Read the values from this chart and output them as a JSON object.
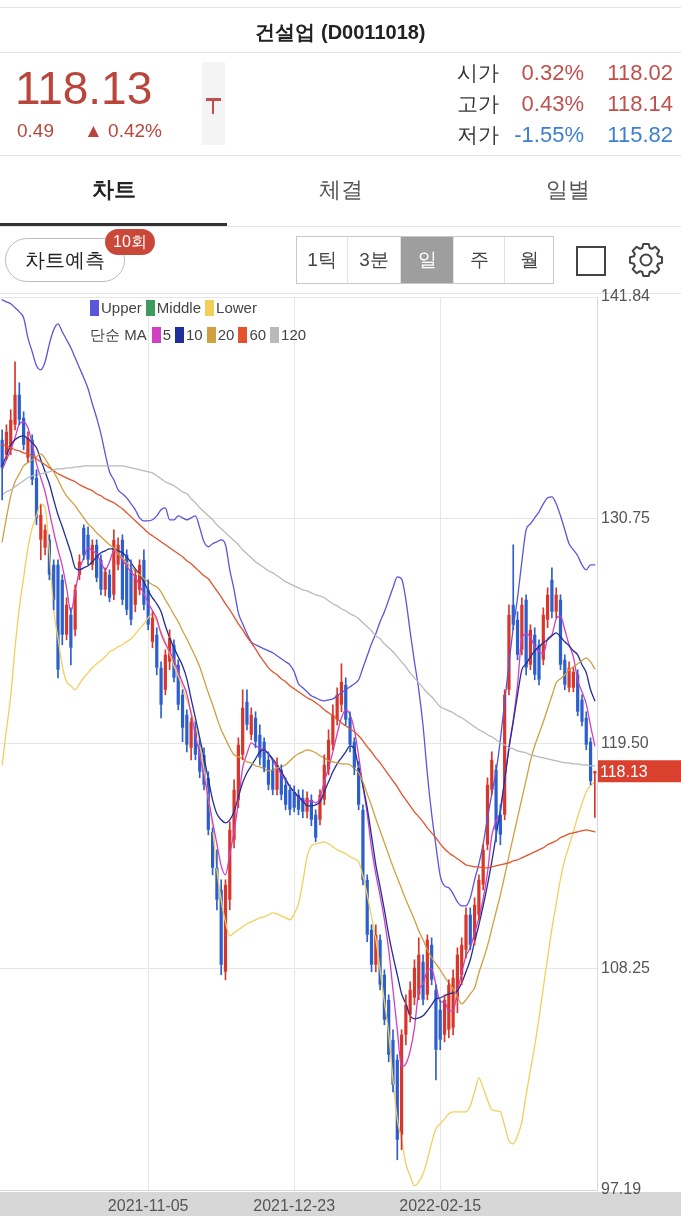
{
  "chart_data": {
    "type": "candlestick",
    "title": "건설업 (D0011018)",
    "legend_title": "단순 MA",
    "legend": "top left",
    "grid": true,
    "categories": [
      null,
      null,
      null,
      null,
      null,
      null,
      null,
      null,
      null,
      null,
      null,
      null,
      null,
      null,
      null,
      null,
      null,
      null,
      null,
      null,
      null,
      null,
      null,
      null,
      null,
      null,
      null,
      null,
      null,
      null,
      null,
      null,
      null,
      null,
      "2021-11-05",
      null,
      null,
      null,
      null,
      null,
      null,
      null,
      null,
      null,
      null,
      null,
      null,
      null,
      null,
      null,
      null,
      null,
      null,
      null,
      null,
      null,
      null,
      null,
      null,
      null,
      null,
      null,
      null,
      null,
      null,
      null,
      null,
      null,
      "2021-12-23",
      null,
      null,
      null,
      null,
      null,
      null,
      null,
      null,
      null,
      null,
      null,
      null,
      null,
      null,
      null,
      null,
      null,
      null,
      null,
      null,
      null,
      null,
      null,
      null,
      null,
      null,
      null,
      null,
      null,
      null,
      null,
      null,
      null,
      "2022-02-15",
      null,
      null,
      null,
      null,
      null,
      null,
      null,
      null,
      null,
      null,
      null,
      null,
      null,
      null,
      null,
      null,
      null,
      null,
      null,
      null,
      null,
      null,
      null,
      null,
      null,
      null,
      null,
      null,
      null,
      null,
      null,
      null,
      null,
      null,
      null,
      null
    ],
    "ylim": [
      97.19,
      141.84
    ],
    "yticks": [
      97.19,
      108.25,
      {
        "value": 119.5,
        "label": "119.50"
      },
      130.75,
      141.84
    ],
    "ohlc": [
      [
        134.7,
        135.2,
        131.7,
        133.3
      ],
      [
        133.95,
        135.45,
        133.7,
        135.1
      ],
      [
        134.2,
        136.2,
        133.95,
        135.7
      ],
      [
        135.45,
        138.6,
        135.2,
        136.95
      ],
      [
        136.95,
        137.55,
        135.45,
        135.7
      ],
      [
        135.8,
        136.1,
        134.2,
        134.45
      ],
      [
        133.8,
        135.1,
        133.6,
        134.8
      ],
      [
        134.7,
        134.95,
        132.45,
        132.7
      ],
      [
        132.8,
        133.2,
        130.45,
        130.8
      ],
      [
        129.7,
        131.45,
        128.7,
        130.95
      ],
      [
        129.3,
        130.45,
        128.95,
        130.2
      ],
      [
        129.7,
        129.95,
        127.7,
        127.95
      ],
      [
        128.45,
        128.7,
        126.2,
        126.7
      ],
      [
        128.45,
        128.7,
        122.8,
        123.2
      ],
      [
        127.7,
        127.95,
        124.45,
        124.95
      ],
      [
        124.95,
        126.8,
        124.7,
        126.45
      ],
      [
        125.95,
        126.3,
        123.45,
        124.3
      ],
      [
        125.2,
        127.45,
        124.9,
        127.2
      ],
      [
        127.95,
        128.95,
        127.7,
        128.6
      ],
      [
        130.3,
        130.45,
        128.7,
        128.95
      ],
      [
        129.95,
        130.35,
        128.45,
        128.7
      ],
      [
        128.45,
        129.7,
        128.2,
        129.45
      ],
      [
        129.45,
        129.7,
        127.6,
        127.8
      ],
      [
        128.7,
        128.95,
        126.95,
        127.2
      ],
      [
        127.2,
        128.3,
        126.9,
        128.1
      ],
      [
        127.95,
        128.2,
        126.6,
        126.8
      ],
      [
        126.95,
        130.2,
        126.7,
        129.7
      ],
      [
        128.45,
        129.8,
        128.2,
        129.45
      ],
      [
        129.7,
        129.95,
        126.45,
        126.7
      ],
      [
        128.95,
        129.2,
        125.95,
        126.2
      ],
      [
        128.2,
        128.7,
        125.45,
        125.7
      ],
      [
        126.45,
        128.2,
        126.1,
        127.95
      ],
      [
        127.2,
        128.7,
        126.95,
        128.45
      ],
      [
        128.7,
        129.2,
        126.2,
        126.45
      ],
      [
        127.2,
        127.7,
        125.2,
        125.45
      ],
      [
        124.6,
        126.1,
        124.3,
        125.8
      ],
      [
        124.95,
        125.3,
        122.95,
        123.3
      ],
      [
        123.3,
        123.6,
        120.8,
        121.45
      ],
      [
        122.2,
        124.2,
        121.95,
        123.95
      ],
      [
        123.6,
        125.2,
        123.2,
        124.8
      ],
      [
        124.45,
        124.7,
        122.6,
        122.8
      ],
      [
        123.45,
        123.7,
        121.2,
        121.45
      ],
      [
        121.95,
        122.2,
        119.6,
        120.3
      ],
      [
        120.95,
        121.2,
        119.1,
        119.45
      ],
      [
        119.3,
        120.8,
        118.7,
        120.6
      ],
      [
        120.3,
        120.6,
        118.7,
        118.95
      ],
      [
        119.45,
        119.7,
        117.8,
        118.1
      ],
      [
        118.95,
        119.3,
        117.2,
        117.45
      ],
      [
        117.8,
        118.1,
        114.95,
        115.2
      ],
      [
        115.1,
        115.3,
        112.95,
        113.3
      ],
      [
        113.3,
        114.2,
        111.2,
        111.7
      ],
      [
        112.2,
        112.7,
        107.95,
        108.45
      ],
      [
        108.1,
        112.7,
        107.7,
        112.45
      ],
      [
        111.7,
        115.6,
        111.2,
        115.2
      ],
      [
        114.7,
        117.7,
        114.3,
        117.2
      ],
      [
        116.7,
        119.8,
        116.3,
        119.45
      ],
      [
        118.95,
        122.2,
        118.7,
        121.3
      ],
      [
        121.6,
        122.2,
        120.2,
        120.45
      ],
      [
        119.95,
        121.3,
        119.7,
        120.95
      ],
      [
        120.8,
        121.1,
        119.3,
        119.6
      ],
      [
        119.95,
        120.45,
        118.45,
        118.8
      ],
      [
        119.6,
        119.8,
        118.1,
        118.3
      ],
      [
        118.7,
        119.1,
        117.2,
        117.45
      ],
      [
        118.2,
        118.7,
        116.95,
        117.2
      ],
      [
        117.2,
        118.8,
        116.95,
        118.45
      ],
      [
        118.2,
        118.45,
        116.7,
        116.95
      ],
      [
        117.45,
        117.8,
        116.2,
        116.45
      ],
      [
        117.2,
        117.45,
        115.95,
        116.2
      ],
      [
        117.1,
        117.4,
        116.1,
        116.3
      ],
      [
        116.95,
        117.2,
        115.95,
        116.2
      ],
      [
        116.8,
        117.2,
        115.8,
        116.1
      ],
      [
        116.1,
        117.1,
        115.8,
        116.8
      ],
      [
        116.7,
        116.95,
        115.4,
        115.7
      ],
      [
        115.95,
        116.2,
        114.6,
        114.8
      ],
      [
        115.7,
        117.2,
        115.45,
        116.95
      ],
      [
        116.7,
        118.95,
        116.45,
        118.45
      ],
      [
        118.2,
        120.2,
        117.95,
        119.7
      ],
      [
        119.45,
        121.45,
        119.2,
        120.95
      ],
      [
        120.7,
        122.3,
        120.45,
        121.95
      ],
      [
        121.45,
        123.5,
        121.1,
        122.6
      ],
      [
        122.45,
        122.8,
        120.45,
        120.7
      ],
      [
        120.8,
        121.1,
        119.1,
        119.45
      ],
      [
        119.6,
        119.8,
        117.95,
        118.3
      ],
      [
        118.3,
        118.6,
        116.2,
        116.45
      ],
      [
        116.2,
        116.45,
        112.45,
        112.7
      ],
      [
        112.7,
        112.95,
        109.6,
        109.95
      ],
      [
        110.2,
        110.45,
        108.1,
        108.45
      ],
      [
        108.45,
        110.45,
        108.1,
        109.95
      ],
      [
        109.7,
        109.95,
        107.2,
        107.45
      ],
      [
        107.95,
        108.2,
        105.45,
        105.7
      ],
      [
        106.7,
        106.95,
        103.6,
        103.95
      ],
      [
        104.7,
        105.2,
        102.1,
        102.45
      ],
      [
        103.7,
        103.95,
        98.7,
        99.7
      ],
      [
        99.95,
        105.2,
        99.2,
        104.95
      ],
      [
        104.95,
        106.95,
        104.45,
        106.45
      ],
      [
        105.95,
        107.6,
        105.6,
        107.2
      ],
      [
        106.8,
        108.7,
        106.45,
        108.3
      ],
      [
        106.95,
        109.8,
        106.7,
        108.95
      ],
      [
        108.6,
        108.95,
        106.45,
        106.7
      ],
      [
        106.95,
        109.95,
        106.7,
        109.7
      ],
      [
        109.45,
        109.8,
        107.45,
        107.7
      ],
      [
        107.2,
        107.45,
        102.7,
        104.2
      ],
      [
        106.2,
        106.7,
        104.2,
        104.7
      ],
      [
        104.95,
        106.95,
        104.6,
        106.7
      ],
      [
        105.2,
        107.7,
        104.8,
        107.45
      ],
      [
        105.3,
        108.2,
        104.95,
        107.8
      ],
      [
        106.7,
        109.3,
        106.05,
        108.95
      ],
      [
        107.95,
        109.8,
        107.45,
        109.45
      ],
      [
        109.2,
        111.3,
        108.8,
        110.95
      ],
      [
        110.95,
        111.3,
        109.2,
        109.45
      ],
      [
        109.7,
        111.8,
        109.45,
        111.45
      ],
      [
        110.95,
        112.95,
        110.7,
        112.7
      ],
      [
        112.45,
        114.45,
        112.2,
        114.2
      ],
      [
        114.45,
        117.8,
        114.2,
        117.45
      ],
      [
        117.2,
        119.1,
        116.95,
        118.7
      ],
      [
        118.2,
        118.45,
        114.6,
        115.2
      ],
      [
        115.95,
        116.45,
        114.45,
        114.95
      ],
      [
        115.95,
        122.2,
        115.7,
        121.95
      ],
      [
        122.2,
        126.45,
        121.95,
        125.95
      ],
      [
        126.45,
        129.45,
        125.2,
        125.45
      ],
      [
        125.7,
        126.1,
        123.7,
        123.95
      ],
      [
        124.2,
        126.8,
        123.95,
        126.45
      ],
      [
        126.7,
        126.95,
        122.95,
        123.3
      ],
      [
        123.45,
        125.45,
        123.2,
        125.2
      ],
      [
        124.95,
        125.3,
        122.7,
        122.95
      ],
      [
        124.45,
        124.7,
        122.45,
        122.7
      ],
      [
        123.7,
        126.3,
        123.45,
        125.95
      ],
      [
        125.7,
        127.3,
        125.3,
        126.95
      ],
      [
        127.7,
        128.3,
        125.8,
        126.1
      ],
      [
        126.1,
        127.3,
        125.8,
        126.95
      ],
      [
        126.7,
        126.95,
        123.2,
        123.45
      ],
      [
        123.7,
        123.95,
        122.2,
        122.45
      ],
      [
        122.3,
        123.6,
        122.1,
        123.3
      ],
      [
        122.3,
        123.3,
        122.1,
        123.1
      ],
      [
        122.95,
        123.2,
        120.9,
        121.1
      ],
      [
        121.7,
        121.95,
        120.4,
        120.6
      ],
      [
        120.8,
        121.1,
        119.2,
        119.45
      ],
      [
        119.6,
        119.8,
        117.45,
        117.64
      ],
      [
        118.02,
        118.14,
        115.82,
        118.13
      ]
    ],
    "colors": [
      "#2c5fce",
      "#d8362b",
      "#d8362b",
      "#d8362b",
      "#2c5fce",
      "#2c5fce",
      "#d8362b",
      "#2c5fce",
      "#2c5fce",
      "#d8362b",
      "#d8362b",
      "#2c5fce",
      "#2c5fce",
      "#2c5fce",
      "#2c5fce",
      "#d8362b",
      "#2c5fce",
      "#d8362b",
      "#d8362b",
      "#2c5fce",
      "#2c5fce",
      "#d8362b",
      "#2c5fce",
      "#2c5fce",
      "#d8362b",
      "#2c5fce",
      "#d8362b",
      "#d8362b",
      "#2c5fce",
      "#2c5fce",
      "#2c5fce",
      "#d8362b",
      "#d8362b",
      "#2c5fce",
      "#2c5fce",
      "#d8362b",
      "#2c5fce",
      "#2c5fce",
      "#d8362b",
      "#d8362b",
      "#2c5fce",
      "#2c5fce",
      "#2c5fce",
      "#2c5fce",
      "#d8362b",
      "#2c5fce",
      "#2c5fce",
      "#2c5fce",
      "#2c5fce",
      "#2c5fce",
      "#2c5fce",
      "#2c5fce",
      "#d8362b",
      "#d8362b",
      "#d8362b",
      "#d8362b",
      "#d8362b",
      "#2c5fce",
      "#d8362b",
      "#2c5fce",
      "#2c5fce",
      "#2c5fce",
      "#2c5fce",
      "#2c5fce",
      "#d8362b",
      "#2c5fce",
      "#2c5fce",
      "#2c5fce",
      "#2c5fce",
      "#2c5fce",
      "#2c5fce",
      "#d8362b",
      "#2c5fce",
      "#2c5fce",
      "#d8362b",
      "#d8362b",
      "#d8362b",
      "#d8362b",
      "#d8362b",
      "#d8362b",
      "#2c5fce",
      "#2c5fce",
      "#2c5fce",
      "#2c5fce",
      "#2c5fce",
      "#2c5fce",
      "#2c5fce",
      "#d8362b",
      "#2c5fce",
      "#2c5fce",
      "#2c5fce",
      "#2c5fce",
      "#2c5fce",
      "#d8362b",
      "#d8362b",
      "#d8362b",
      "#d8362b",
      "#d8362b",
      "#2c5fce",
      "#d8362b",
      "#2c5fce",
      "#2c5fce",
      "#2c5fce",
      "#d8362b",
      "#d8362b",
      "#d8362b",
      "#d8362b",
      "#d8362b",
      "#d8362b",
      "#2c5fce",
      "#d8362b",
      "#d8362b",
      "#d8362b",
      "#d8362b",
      "#d8362b",
      "#2c5fce",
      "#2c5fce",
      "#d8362b",
      "#d8362b",
      "#2c5fce",
      "#2c5fce",
      "#d8362b",
      "#2c5fce",
      "#d8362b",
      "#2c5fce",
      "#2c5fce",
      "#d8362b",
      "#d8362b",
      "#2c5fce",
      "#d8362b",
      "#2c5fce",
      "#2c5fce",
      "#d8362b",
      "#d8362b",
      "#2c5fce",
      "#2c5fce",
      "#2c5fce",
      "#2c5fce",
      "#d8362b"
    ],
    "series": [
      {
        "name": "Upper",
        "type": "line",
        "color": "#5b55d9",
        "values": [
          141.7,
          141.6,
          141.5,
          141.3,
          141.1,
          140.8,
          139.8,
          139.1,
          138.4,
          138.2,
          138.6,
          139.5,
          140.2,
          140.5,
          140.1,
          139.7,
          139.3,
          138.8,
          138.3,
          137.8,
          137.25,
          136.5,
          135.8,
          135.0,
          134.0,
          133.1,
          132.7,
          132.2,
          132.0,
          131.8,
          131.5,
          131.2,
          130.8,
          130.65,
          130.65,
          130.7,
          130.9,
          131.2,
          131.3,
          130.7,
          130.7,
          130.9,
          130.8,
          130.7,
          130.8,
          130.9,
          130.3,
          129.6,
          129.35,
          129.5,
          129.6,
          129.7,
          129.45,
          128.2,
          127.2,
          126.05,
          125.5,
          125.0,
          124.6,
          124.45,
          124.35,
          124.25,
          124.15,
          124.05,
          123.9,
          123.75,
          123.6,
          123.45,
          123.1,
          122.5,
          122.3,
          122.1,
          121.9,
          121.8,
          121.7,
          121.65,
          121.7,
          121.75,
          121.9,
          122.05,
          122.2,
          122.35,
          122.5,
          122.7,
          123.3,
          123.9,
          124.5,
          125.0,
          125.6,
          126.1,
          126.7,
          127.3,
          127.85,
          127.75,
          126.7,
          125.1,
          123.6,
          122.2,
          120.4,
          118.0,
          116.0,
          114.4,
          112.9,
          112.4,
          112.3,
          112.0,
          111.6,
          111.4,
          111.4,
          111.8,
          112.7,
          113.5,
          114.5,
          115.8,
          117.0,
          118.1,
          119.7,
          121.6,
          123.5,
          125.3,
          126.8,
          128.6,
          130.2,
          130.5,
          130.8,
          131.1,
          131.5,
          131.8,
          131.85,
          131.5,
          130.9,
          130.2,
          129.5,
          129.2,
          128.9,
          128.45,
          128.2,
          128.45,
          128.45
        ]
      },
      {
        "name": "Middle",
        "type": "line",
        "color": "#3f9a60",
        "values": [
          null,
          null,
          null,
          null,
          null,
          null,
          null,
          null,
          null,
          null,
          null,
          null,
          null,
          null,
          null,
          null,
          null,
          null,
          null,
          null,
          null,
          null,
          null,
          null,
          null,
          null,
          null,
          null,
          null,
          null,
          null,
          null,
          null,
          null,
          null,
          null,
          null,
          null,
          null,
          null,
          null,
          null,
          null,
          null,
          null,
          null,
          null,
          null,
          null,
          null,
          null,
          null,
          null,
          null,
          null,
          null,
          null,
          null,
          null,
          null,
          null,
          null,
          null,
          null,
          null,
          null,
          null,
          null,
          null,
          null,
          null,
          null,
          null,
          null,
          null,
          null,
          null,
          null,
          null,
          null,
          null,
          null,
          null,
          null,
          null,
          null,
          null,
          null,
          null,
          null,
          null,
          null,
          null,
          null,
          null,
          null,
          null,
          null,
          null,
          null,
          null,
          null,
          null,
          null,
          null,
          null,
          null,
          null,
          null,
          null,
          null,
          null,
          null,
          null,
          null,
          null,
          null,
          null,
          null,
          null,
          null,
          null,
          null,
          null,
          null,
          null,
          null,
          null,
          null,
          null,
          null,
          null,
          null,
          null,
          null,
          null,
          null,
          null,
          null
        ]
      },
      {
        "name": "Lower",
        "type": "line",
        "color": "#f2cf5b",
        "values": [
          118.45,
          120.2,
          121.9,
          124.3,
          126.3,
          127.8,
          129.3,
          130.3,
          130.9,
          131.5,
          131.3,
          129.1,
          126.2,
          124.8,
          123.4,
          122.6,
          122.4,
          122.2,
          122.5,
          122.8,
          123.05,
          123.3,
          123.5,
          123.65,
          123.85,
          124.1,
          124.2,
          124.35,
          124.45,
          124.6,
          124.75,
          125.0,
          125.25,
          125.5,
          125.8,
          126.0,
          125.6,
          125.1,
          124.6,
          124.0,
          123.4,
          122.9,
          122.3,
          121.7,
          121.1,
          120.45,
          119.45,
          118.2,
          116.8,
          115.3,
          113.2,
          111.7,
          110.6,
          109.9,
          110.05,
          110.2,
          110.35,
          110.5,
          110.6,
          110.7,
          110.8,
          110.85,
          110.95,
          111.05,
          111.0,
          110.9,
          110.8,
          110.7,
          111.0,
          111.5,
          112.6,
          113.85,
          114.4,
          114.5,
          114.55,
          114.6,
          114.5,
          114.35,
          114.2,
          114.1,
          114.0,
          113.85,
          113.75,
          113.6,
          112.9,
          111.95,
          110.85,
          109.75,
          108.2,
          106.6,
          105.0,
          102.7,
          100.75,
          99.7,
          98.5,
          97.9,
          97.4,
          97.6,
          98.0,
          98.7,
          99.55,
          100.25,
          100.5,
          100.75,
          101.0,
          101.1,
          101.1,
          101.1,
          101.1,
          101.4,
          102.1,
          102.8,
          102.3,
          101.7,
          101.2,
          101.15,
          101.1,
          100.4,
          99.65,
          99.5,
          99.9,
          100.6,
          101.95,
          103.2,
          104.4,
          105.8,
          107.3,
          108.8,
          110.25,
          111.5,
          112.75,
          113.7,
          114.4,
          115.1,
          115.85,
          116.5,
          117.1,
          117.4,
          117.6
        ]
      },
      {
        "name": "5",
        "type": "line",
        "color": "#d23fc2",
        "values": [
          133.2,
          133.7,
          134.2,
          134.8,
          135.5,
          135.6,
          135.3,
          134.5,
          133.5,
          132.8,
          132.1,
          131.1,
          130.1,
          129.2,
          128.4,
          127.3,
          126.1,
          127.1,
          128.2,
          128.8,
          129.3,
          129.15,
          129.0,
          128.6,
          128.2,
          128.6,
          129.15,
          129.0,
          128.7,
          128.4,
          128.1,
          127.85,
          127.4,
          127.0,
          126.55,
          126.15,
          125.75,
          125.0,
          124.5,
          124.1,
          123.7,
          123.1,
          122.55,
          122.0,
          121.0,
          119.95,
          118.95,
          117.9,
          116.8,
          115.6,
          114.5,
          113.4,
          112.95,
          114.0,
          115.1,
          116.6,
          118.3,
          119.0,
          119.55,
          119.4,
          119.3,
          119.15,
          119.0,
          118.65,
          118.3,
          118.0,
          117.65,
          117.35,
          117.1,
          116.8,
          116.65,
          116.65,
          116.65,
          116.55,
          116.8,
          117.6,
          118.3,
          119.1,
          120.0,
          120.8,
          121.2,
          120.95,
          120.2,
          118.9,
          117.4,
          116.0,
          114.3,
          113.0,
          111.9,
          110.7,
          109.2,
          107.2,
          105.2,
          103.35,
          103.5,
          104.15,
          105.3,
          107.15,
          107.5,
          108.15,
          108.25,
          107.45,
          106.6,
          106.6,
          106.15,
          106.15,
          107.1,
          108.05,
          108.9,
          109.3,
          110.05,
          110.8,
          111.75,
          113.05,
          114.9,
          115.65,
          116.1,
          117.65,
          119.35,
          120.7,
          122.45,
          124.75,
          125.0,
          124.85,
          124.35,
          124.1,
          124.0,
          124.75,
          124.95,
          125.75,
          125.9,
          125.2,
          124.45,
          123.85,
          122.7,
          122.1,
          121.5,
          120.4,
          119.4
        ]
      },
      {
        "name": "10",
        "type": "line",
        "color": "#1f2f99",
        "values": [
          133.4,
          133.9,
          134.45,
          134.7,
          134.85,
          134.9,
          134.75,
          134.55,
          134.3,
          133.7,
          133.1,
          132.5,
          131.7,
          130.95,
          130.35,
          129.7,
          129.05,
          128.3,
          128.2,
          128.3,
          128.4,
          128.6,
          128.85,
          129.05,
          129.15,
          129.25,
          129.25,
          129.15,
          129.05,
          128.85,
          128.55,
          128.25,
          127.95,
          127.6,
          127.15,
          126.8,
          126.5,
          126.1,
          125.4,
          124.8,
          124.3,
          123.85,
          123.4,
          122.75,
          121.75,
          120.8,
          119.8,
          118.8,
          117.75,
          116.7,
          116.0,
          115.7,
          115.55,
          115.7,
          116.1,
          116.85,
          117.55,
          118.05,
          118.4,
          118.75,
          119.1,
          119.2,
          119.0,
          118.75,
          118.45,
          118.1,
          117.75,
          117.35,
          117.1,
          116.85,
          116.65,
          116.4,
          116.4,
          116.45,
          116.6,
          117.1,
          117.6,
          118.1,
          118.5,
          118.8,
          119.1,
          119.4,
          119.25,
          118.3,
          117.4,
          116.3,
          114.9,
          113.45,
          112.35,
          111.2,
          109.95,
          108.9,
          107.95,
          107.0,
          106.5,
          105.9,
          105.75,
          105.8,
          105.9,
          106.15,
          106.45,
          106.75,
          106.8,
          106.9,
          107.0,
          107.05,
          107.15,
          107.55,
          108.1,
          108.7,
          109.6,
          110.45,
          111.4,
          112.45,
          113.6,
          114.9,
          116.2,
          117.7,
          119.25,
          120.6,
          121.95,
          123.2,
          123.5,
          123.85,
          124.15,
          124.35,
          124.55,
          124.7,
          124.9,
          125.05,
          124.85,
          124.6,
          124.4,
          124.15,
          123.95,
          123.45,
          123.05,
          122.2,
          121.65
        ]
      },
      {
        "name": "20",
        "type": "line",
        "color": "#d0a040",
        "values": [
          129.6,
          130.8,
          131.9,
          132.6,
          133.0,
          133.4,
          133.55,
          133.7,
          133.85,
          134.0,
          133.75,
          133.4,
          133.1,
          132.7,
          132.25,
          131.9,
          131.65,
          131.4,
          131.1,
          130.8,
          130.5,
          130.3,
          130.05,
          129.85,
          129.65,
          129.45,
          129.3,
          129.0,
          128.8,
          128.55,
          128.35,
          128.15,
          127.95,
          127.75,
          127.6,
          127.45,
          127.35,
          127.1,
          126.7,
          126.35,
          125.95,
          125.6,
          125.15,
          124.75,
          124.3,
          123.85,
          123.35,
          122.7,
          122.05,
          121.45,
          120.8,
          120.2,
          119.75,
          119.3,
          118.95,
          118.85,
          118.75,
          118.6,
          118.55,
          118.4,
          118.35,
          118.25,
          118.15,
          118.2,
          118.3,
          118.35,
          118.45,
          118.65,
          118.85,
          119.0,
          119.1,
          119.2,
          119.15,
          119.05,
          118.9,
          118.8,
          118.65,
          118.6,
          118.55,
          118.5,
          118.5,
          118.45,
          118.25,
          118.05,
          117.6,
          117.0,
          116.4,
          115.75,
          115.15,
          114.55,
          113.95,
          113.35,
          112.8,
          112.25,
          111.7,
          111.2,
          110.7,
          110.15,
          109.7,
          109.2,
          108.8,
          108.5,
          108.2,
          107.85,
          107.55,
          107.25,
          106.85,
          106.5,
          106.7,
          107.0,
          107.3,
          108.05,
          108.7,
          109.4,
          110.25,
          111.1,
          111.95,
          112.9,
          113.9,
          114.85,
          115.8,
          116.75,
          117.7,
          118.65,
          119.4,
          120.0,
          120.6,
          121.25,
          121.9,
          122.55,
          122.75,
          122.95,
          123.2,
          123.35,
          123.5,
          123.65,
          123.8,
          123.6,
          123.25
        ]
      },
      {
        "name": "60",
        "type": "line",
        "color": "#e2532c",
        "values": [
          134.45,
          134.4,
          134.3,
          134.2,
          134.15,
          134.05,
          134.0,
          133.9,
          133.75,
          133.6,
          133.45,
          133.3,
          133.15,
          133.0,
          132.9,
          132.8,
          132.7,
          132.6,
          132.45,
          132.35,
          132.25,
          132.15,
          132.0,
          131.9,
          131.75,
          131.65,
          131.55,
          131.4,
          131.25,
          131.05,
          130.85,
          130.65,
          130.45,
          130.25,
          130.05,
          129.9,
          129.75,
          129.6,
          129.45,
          129.3,
          129.15,
          129.0,
          128.85,
          128.65,
          128.5,
          128.3,
          128.1,
          127.9,
          127.75,
          127.45,
          127.15,
          126.85,
          126.5,
          126.2,
          125.85,
          125.5,
          125.2,
          124.85,
          124.55,
          124.25,
          123.9,
          123.6,
          123.3,
          123.1,
          122.95,
          122.75,
          122.6,
          122.4,
          122.25,
          122.1,
          121.95,
          121.8,
          121.7,
          121.55,
          121.4,
          121.2,
          121.05,
          120.9,
          120.75,
          120.55,
          120.4,
          120.25,
          120.1,
          119.9,
          119.65,
          119.35,
          119.1,
          118.8,
          118.55,
          118.25,
          117.95,
          117.65,
          117.35,
          117.0,
          116.7,
          116.4,
          116.1,
          115.85,
          115.6,
          115.3,
          115.05,
          114.8,
          114.5,
          114.25,
          114.05,
          113.9,
          113.75,
          113.6,
          113.45,
          113.4,
          113.35,
          113.35,
          113.3,
          113.3,
          113.35,
          113.4,
          113.45,
          113.5,
          113.55,
          113.65,
          113.7,
          113.8,
          113.9,
          114.0,
          114.1,
          114.2,
          114.3,
          114.45,
          114.55,
          114.65,
          114.8,
          114.9,
          115.0,
          115.05,
          115.1,
          115.15,
          115.2,
          115.15,
          115.1
        ]
      },
      {
        "name": "120",
        "type": "line",
        "color": "#b9b9b9",
        "values": [
          131.95,
          132.1,
          132.2,
          132.35,
          132.5,
          132.65,
          132.8,
          132.9,
          132.95,
          133.0,
          133.05,
          133.1,
          133.2,
          133.25,
          133.25,
          133.3,
          133.3,
          133.35,
          133.35,
          133.4,
          133.4,
          133.4,
          133.4,
          133.4,
          133.4,
          133.4,
          133.4,
          133.4,
          133.4,
          133.35,
          133.3,
          133.25,
          133.2,
          133.15,
          133.1,
          133.05,
          132.9,
          132.75,
          132.6,
          132.5,
          132.4,
          132.25,
          132.1,
          132.0,
          131.75,
          131.55,
          131.3,
          131.1,
          130.9,
          130.7,
          130.45,
          130.25,
          130.05,
          129.85,
          129.65,
          129.45,
          129.2,
          129.0,
          128.8,
          128.6,
          128.45,
          128.3,
          128.15,
          128.05,
          127.9,
          127.75,
          127.6,
          127.5,
          127.4,
          127.3,
          127.2,
          127.15,
          127.05,
          126.95,
          126.9,
          126.8,
          126.65,
          126.5,
          126.4,
          126.25,
          126.15,
          126.0,
          125.9,
          125.75,
          125.55,
          125.35,
          125.15,
          124.9,
          124.75,
          124.5,
          124.3,
          124.1,
          123.85,
          123.6,
          123.35,
          123.05,
          122.8,
          122.55,
          122.3,
          122.05,
          121.85,
          121.6,
          121.35,
          121.25,
          121.15,
          121.05,
          120.9,
          120.8,
          120.65,
          120.5,
          120.35,
          120.2,
          120.1,
          119.95,
          119.85,
          119.7,
          119.55,
          119.45,
          119.3,
          119.25,
          119.15,
          119.1,
          119.05,
          118.95,
          118.9,
          118.85,
          118.8,
          118.75,
          118.7,
          118.65,
          118.6,
          118.55,
          118.55,
          118.5,
          118.5,
          118.45,
          118.45,
          118.4,
          118.4
        ]
      }
    ],
    "annotations": [
      "118.13",
      "0.49",
      "▲ 0.42%",
      "시가",
      "0.32%",
      "118.02",
      "고가",
      "0.43%",
      "118.14",
      "저가",
      "-1.55%",
      "115.82",
      "차트",
      "체결",
      "일별",
      "차트예측",
      "10회",
      "1틱",
      "3분",
      "일",
      "주",
      "월",
      "118.13"
    ]
  }
}
